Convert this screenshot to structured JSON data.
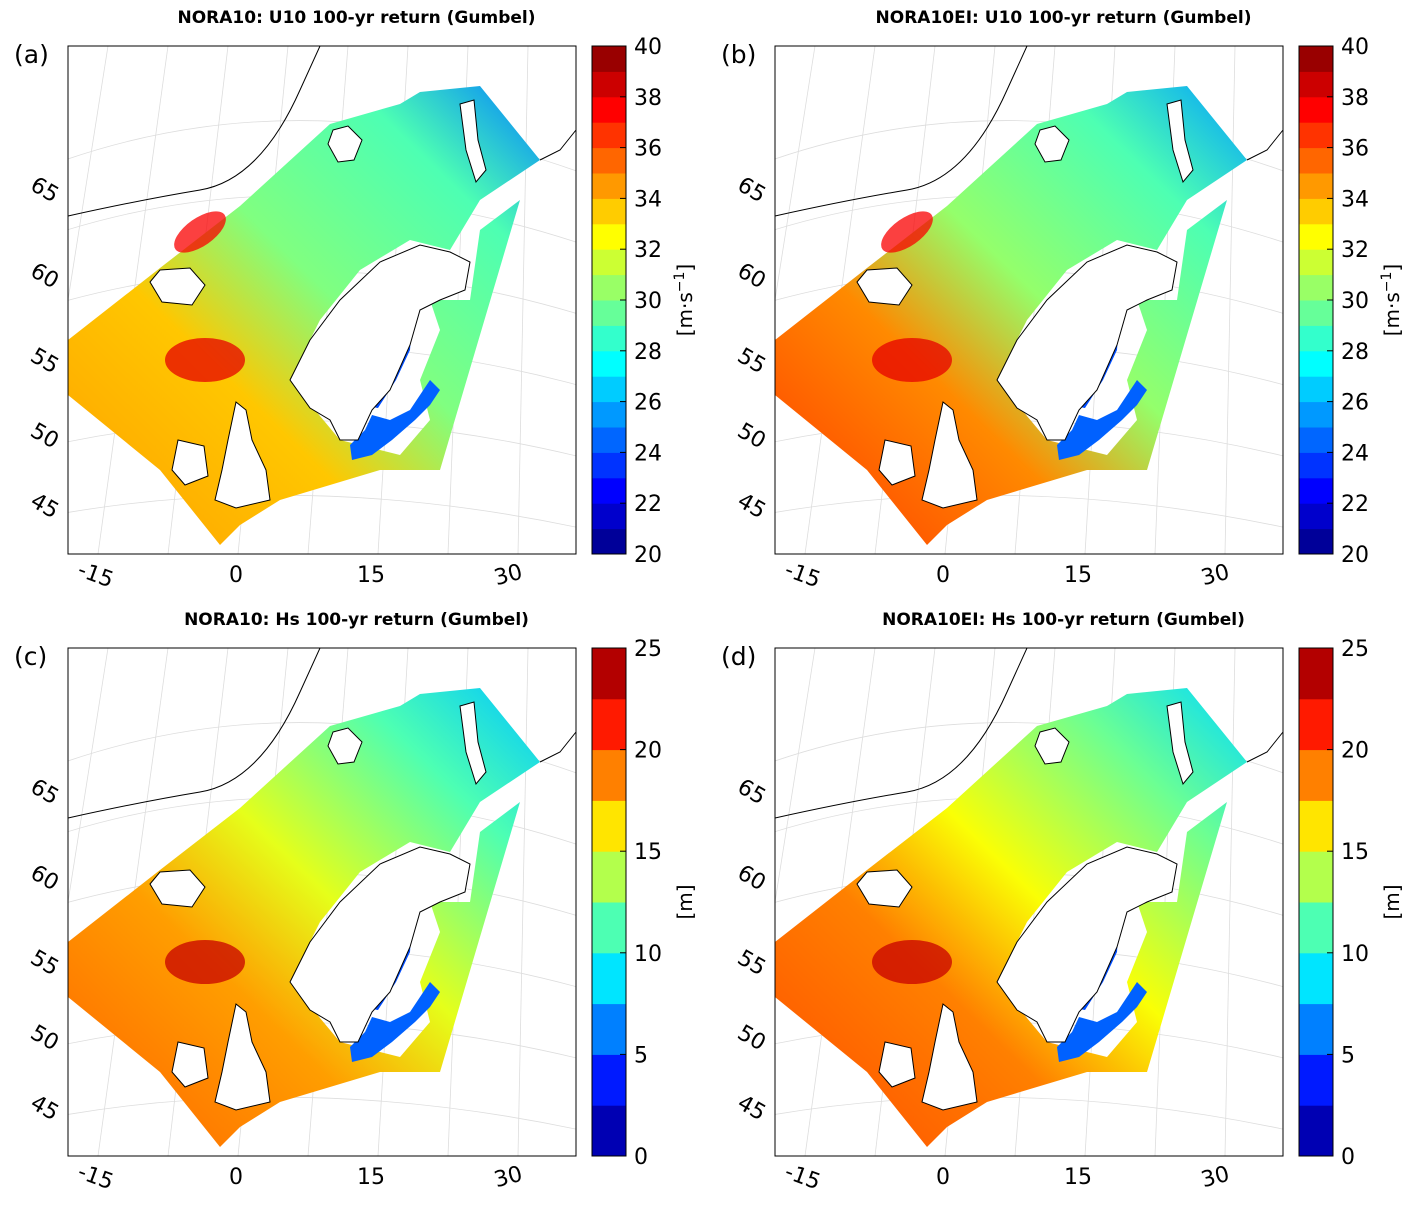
{
  "panels": [
    {
      "label": "(a)",
      "title": "NORA10: U10 100-yr return (Gumbel)",
      "variant": "wind_nora10",
      "colorbar": {
        "min": 20,
        "max": 40,
        "ticks": [
          "20",
          "22",
          "24",
          "26",
          "28",
          "30",
          "32",
          "34",
          "36",
          "38",
          "40"
        ],
        "unit_main": "[m·s",
        "unit_sup": "−1",
        "unit_end": "]"
      }
    },
    {
      "label": "(b)",
      "title": "NORA10EI: U10 100-yr return (Gumbel)",
      "variant": "wind_nora10ei",
      "colorbar": {
        "min": 20,
        "max": 40,
        "ticks": [
          "20",
          "22",
          "24",
          "26",
          "28",
          "30",
          "32",
          "34",
          "36",
          "38",
          "40"
        ],
        "unit_main": "[m·s",
        "unit_sup": "−1",
        "unit_end": "]"
      }
    },
    {
      "label": "(c)",
      "title": "NORA10: Hs 100-yr return (Gumbel)",
      "variant": "hs_nora10",
      "colorbar": {
        "min": 0,
        "max": 25,
        "ticks": [
          "0",
          "5",
          "10",
          "15",
          "20",
          "25"
        ],
        "unit_main": "[m]",
        "unit_sup": "",
        "unit_end": ""
      }
    },
    {
      "label": "(d)",
      "title": "NORA10EI: Hs 100-yr return (Gumbel)",
      "variant": "hs_nora10ei",
      "colorbar": {
        "min": 0,
        "max": 25,
        "ticks": [
          "0",
          "5",
          "10",
          "15",
          "20",
          "25"
        ],
        "unit_main": "[m]",
        "unit_sup": "",
        "unit_end": ""
      }
    }
  ],
  "lon_ticks": [
    "-15",
    "0",
    "15",
    "30"
  ],
  "lat_ticks": [
    "65",
    "60",
    "55",
    "50",
    "45"
  ],
  "colormap": "jet",
  "colors": {
    "land": "#ffffff",
    "coast": "#000000",
    "grid": "#dddddd"
  }
}
